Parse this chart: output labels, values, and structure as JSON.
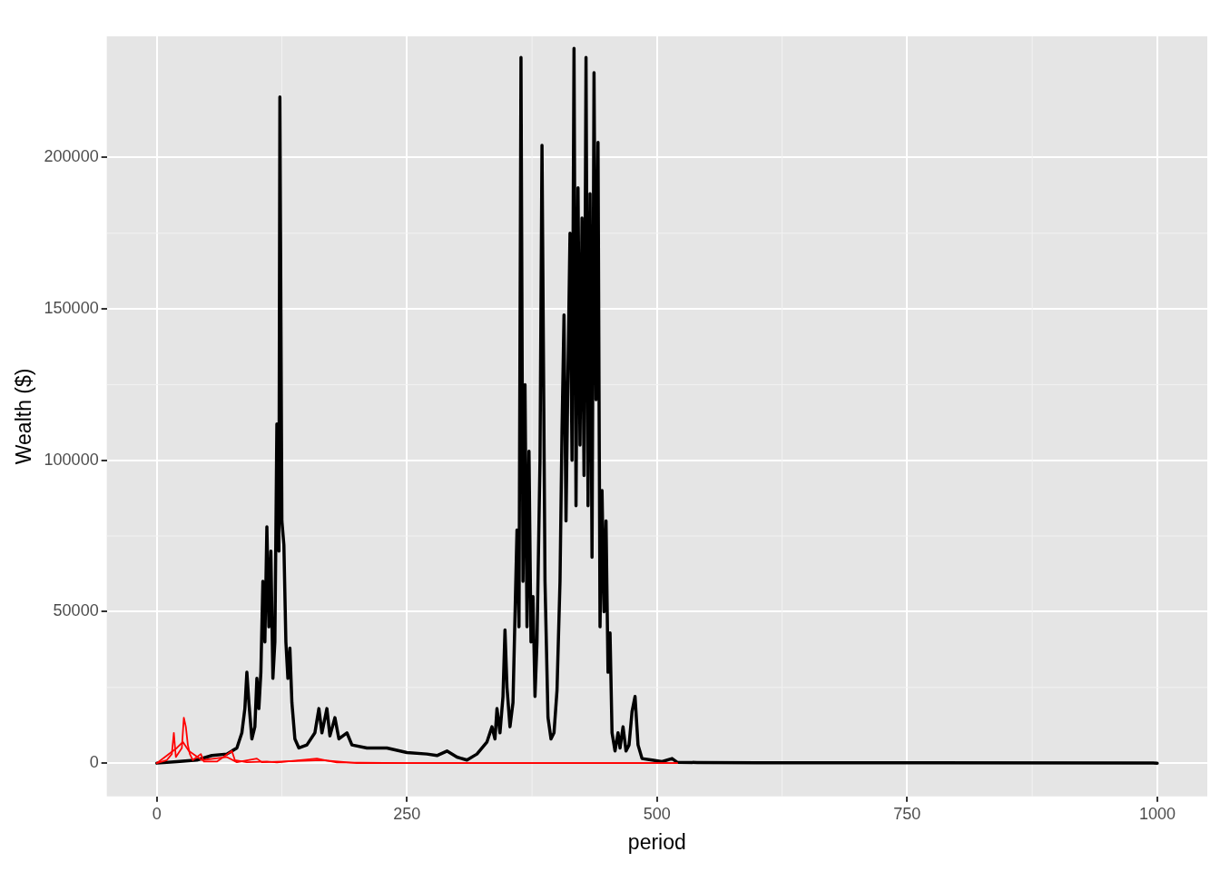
{
  "chart_data": {
    "type": "line",
    "xlabel": "period",
    "ylabel": "Wealth ($)",
    "xlim": [
      -50,
      1050
    ],
    "ylim": [
      -11000,
      240000
    ],
    "xticks": [
      0,
      250,
      500,
      750,
      1000
    ],
    "yticks": [
      0,
      50000,
      100000,
      150000,
      200000
    ],
    "grid": true,
    "legend": false,
    "marker": "none",
    "line_style": "solid",
    "series": [
      {
        "color": "#ff0000",
        "x": [
          0,
          10,
          15,
          17,
          19,
          25,
          27,
          29,
          31,
          33,
          36,
          44,
          47,
          60,
          75,
          78,
          90,
          110,
          120,
          160,
          170,
          180,
          250,
          520
        ],
        "values": [
          0,
          1000,
          3000,
          10000,
          2000,
          5000,
          15000,
          12000,
          6000,
          3000,
          1000,
          3000,
          500,
          500,
          4000,
          1000,
          300,
          500,
          200,
          1500,
          800,
          200,
          0,
          0
        ]
      },
      {
        "color": "#ff0000",
        "x": [
          0,
          8,
          20,
          26,
          32,
          45,
          70,
          80,
          100,
          105,
          165,
          200,
          520
        ],
        "values": [
          0,
          2000,
          5000,
          7000,
          4000,
          1000,
          2000,
          300,
          1500,
          300,
          1000,
          0,
          0
        ]
      },
      {
        "color": "#000000",
        "x": [
          0,
          20,
          40,
          55,
          70,
          80,
          85,
          88,
          90,
          92,
          95,
          98,
          100,
          102,
          104,
          106,
          108,
          110,
          112,
          114,
          116,
          118,
          120,
          122,
          123,
          125,
          127,
          129,
          131,
          133,
          135,
          138,
          142,
          150,
          158,
          162,
          165,
          170,
          173,
          178,
          182,
          190,
          195,
          210,
          230,
          250,
          270,
          280,
          290,
          300,
          310,
          320,
          330,
          335,
          338,
          340,
          343,
          346,
          348,
          350,
          353,
          356,
          360,
          362,
          364,
          366,
          368,
          370,
          372,
          374,
          376,
          378,
          380,
          383,
          385,
          388,
          391,
          394,
          397,
          400,
          403,
          405,
          407,
          409,
          411,
          413,
          415,
          417,
          419,
          421,
          423,
          425,
          427,
          429,
          431,
          433,
          435,
          437,
          439,
          441,
          443,
          445,
          447,
          449,
          451,
          453,
          455,
          458,
          461,
          463,
          466,
          469,
          472,
          475,
          478,
          481,
          485,
          495,
          505,
          515,
          520,
          540,
          600,
          700,
          1000
        ],
        "values": [
          0,
          500,
          1000,
          2500,
          3000,
          5000,
          10000,
          18000,
          30000,
          20000,
          8000,
          12000,
          28000,
          18000,
          30000,
          60000,
          40000,
          78000,
          45000,
          70000,
          28000,
          40000,
          112000,
          70000,
          220000,
          80000,
          72000,
          40000,
          28000,
          38000,
          20000,
          8000,
          5000,
          6000,
          10000,
          18000,
          10000,
          18000,
          9000,
          15000,
          8000,
          10000,
          6000,
          5000,
          5000,
          3500,
          3000,
          2500,
          4000,
          2000,
          1000,
          3000,
          7000,
          12000,
          8000,
          18000,
          10000,
          22000,
          44000,
          25000,
          12000,
          20000,
          77000,
          45000,
          233000,
          60000,
          125000,
          45000,
          103000,
          40000,
          55000,
          22000,
          40000,
          100000,
          204000,
          60000,
          15000,
          8000,
          10000,
          24000,
          60000,
          110000,
          148000,
          80000,
          130000,
          175000,
          100000,
          236000,
          85000,
          190000,
          105000,
          180000,
          95000,
          233000,
          85000,
          188000,
          68000,
          228000,
          120000,
          205000,
          45000,
          90000,
          50000,
          80000,
          30000,
          43000,
          10000,
          4000,
          10000,
          5000,
          12000,
          4000,
          6000,
          17000,
          22000,
          6000,
          1500,
          1000,
          500,
          1500,
          300,
          200,
          100,
          100,
          0
        ]
      }
    ]
  }
}
